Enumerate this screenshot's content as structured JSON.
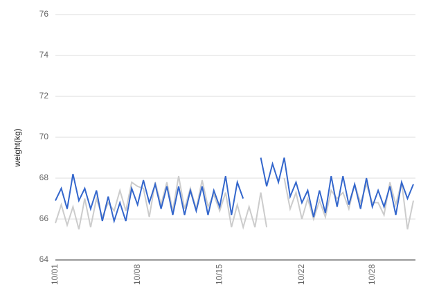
{
  "chart_data": {
    "type": "line",
    "y_label": "weight(kg)",
    "categories": [
      "10/01",
      null,
      null,
      null,
      null,
      null,
      null,
      null,
      null,
      null,
      null,
      null,
      null,
      null,
      "10/08",
      null,
      null,
      null,
      null,
      null,
      null,
      null,
      null,
      null,
      null,
      null,
      null,
      null,
      "10/15",
      null,
      null,
      null,
      null,
      null,
      null,
      null,
      null,
      null,
      null,
      null,
      null,
      null,
      "10/22",
      null,
      null,
      null,
      null,
      null,
      null,
      null,
      null,
      null,
      null,
      null,
      "10/28",
      null,
      null,
      null,
      null,
      null,
      null,
      null
    ],
    "series": [
      {
        "color": "#3366cc",
        "values": [
          66.9,
          67.5,
          66.5,
          68.2,
          66.9,
          67.5,
          66.5,
          67.4,
          65.9,
          67.1,
          65.9,
          66.8,
          65.9,
          67.5,
          66.7,
          67.9,
          66.8,
          67.7,
          66.5,
          67.6,
          66.2,
          67.6,
          66.2,
          67.4,
          66.4,
          67.6,
          66.2,
          67.4,
          66.6,
          68.1,
          66.2,
          67.8,
          67.0,
          null,
          null,
          69.0,
          67.6,
          68.7,
          67.8,
          69.0,
          67.1,
          67.8,
          66.8,
          67.4,
          66.1,
          67.4,
          66.3,
          68.1,
          66.6,
          68.1,
          66.7,
          67.7,
          66.5,
          68.0,
          66.6,
          67.4,
          66.6,
          67.6,
          66.2,
          67.8,
          67.0,
          67.7
        ]
      },
      {
        "color": "#cccccc",
        "values": [
          65.8,
          66.7,
          65.7,
          66.6,
          65.5,
          67.0,
          65.6,
          67.0,
          66.1,
          66.8,
          66.4,
          67.4,
          66.4,
          67.8,
          67.6,
          67.5,
          66.1,
          67.8,
          66.7,
          67.8,
          66.4,
          68.1,
          66.5,
          67.5,
          66.5,
          67.9,
          66.6,
          67.2,
          66.4,
          67.3,
          65.6,
          66.7,
          65.6,
          66.6,
          65.6,
          67.3,
          65.6,
          null,
          null,
          68.0,
          66.5,
          67.3,
          66.0,
          67.0,
          66.0,
          66.9,
          66.1,
          67.4,
          67.0,
          67.3,
          66.5,
          67.7,
          66.8,
          67.7,
          66.8,
          66.8,
          66.2,
          67.8,
          66.7,
          67.8,
          65.5,
          66.9
        ]
      }
    ],
    "ylim": [
      64,
      76
    ],
    "yticks": [
      64,
      66,
      68,
      70,
      72,
      74,
      76
    ],
    "grid": true
  }
}
